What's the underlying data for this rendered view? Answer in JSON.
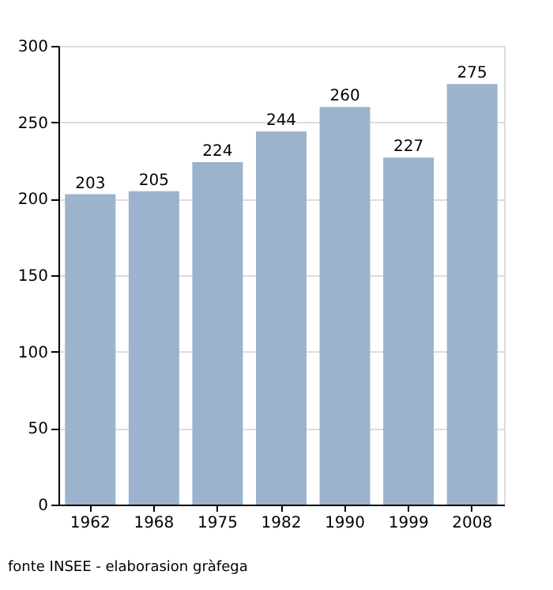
{
  "chart_data": {
    "type": "bar",
    "categories": [
      "1962",
      "1968",
      "1975",
      "1982",
      "1990",
      "1999",
      "2008"
    ],
    "values": [
      203,
      205,
      224,
      244,
      260,
      227,
      275
    ],
    "color": "#9bb3cc",
    "ylim": [
      0,
      300
    ],
    "yticks": [
      0,
      50,
      100,
      150,
      200,
      250,
      300
    ],
    "grid": "y",
    "data_labels": true,
    "annotations": [
      "fonte INSEE - elaborasion gràfega"
    ]
  }
}
